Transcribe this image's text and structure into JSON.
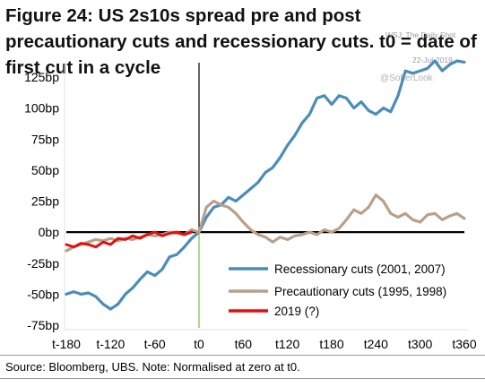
{
  "header": {
    "title": "Figure 24: US 2s10s spread pre and post precautionary cuts and recessionary cuts. t0 = date of first cut in a cycle"
  },
  "watermark": {
    "source": "WSJ: The Daily Shot",
    "date": "22-Jul-2019",
    "handle": "@SoberLook"
  },
  "footer": {
    "source": "Source:  Bloomberg, UBS. Note: Normalised at zero at t0."
  },
  "colors": {
    "recessionary": "#4a8db8",
    "precautionary": "#b8a08a",
    "y2019": "#e01010",
    "zero_line": "#000000",
    "t0_line_upper": "#000000",
    "t0_line_lower": "#7fbf3a"
  },
  "chart_data": {
    "type": "line",
    "title": "US 2s10s spread pre and post precautionary cuts and recessionary cuts. t0 = date of first cut in a cycle",
    "xlabel": "",
    "ylabel": "",
    "x_ticks": [
      -180,
      -120,
      -60,
      0,
      60,
      120,
      180,
      240,
      300,
      360
    ],
    "x_tick_labels": [
      "t-180",
      "t-120",
      "t-60",
      "t0",
      "t60",
      "t120",
      "t180",
      "t240",
      "t300",
      "t360"
    ],
    "xlim": [
      -180,
      360
    ],
    "y_ticks": [
      -75,
      -50,
      -25,
      0,
      25,
      50,
      75,
      100,
      125
    ],
    "y_tick_labels": [
      "-75bp",
      "-50bp",
      "-25bp",
      "0bp",
      "25bp",
      "50bp",
      "75bp",
      "100bp",
      "125bp"
    ],
    "ylim": [
      -75,
      145
    ],
    "grid": false,
    "legend_position": "bottom-right",
    "series": [
      {
        "name": "Recessionary cuts (2001, 2007)",
        "color": "#4a8db8",
        "x": [
          -180,
          -170,
          -160,
          -150,
          -140,
          -130,
          -120,
          -110,
          -100,
          -90,
          -80,
          -70,
          -60,
          -50,
          -40,
          -30,
          -20,
          -10,
          0,
          10,
          20,
          30,
          40,
          50,
          60,
          70,
          80,
          90,
          100,
          110,
          120,
          130,
          140,
          150,
          160,
          170,
          180,
          190,
          200,
          210,
          220,
          230,
          240,
          250,
          260,
          270,
          280,
          290,
          300,
          310,
          320,
          330,
          340,
          350,
          360
        ],
        "y": [
          -50,
          -48,
          -50,
          -49,
          -52,
          -58,
          -62,
          -58,
          -50,
          -45,
          -38,
          -32,
          -35,
          -30,
          -20,
          -18,
          -12,
          -5,
          0,
          12,
          20,
          22,
          28,
          25,
          30,
          35,
          40,
          48,
          52,
          60,
          70,
          78,
          88,
          95,
          108,
          110,
          103,
          110,
          108,
          100,
          105,
          98,
          95,
          100,
          97,
          110,
          130,
          128,
          130,
          132,
          138,
          130,
          135,
          138,
          137
        ]
      },
      {
        "name": "Precautionary cuts (1995, 1998)",
        "color": "#b8a08a",
        "x": [
          -180,
          -170,
          -160,
          -150,
          -140,
          -130,
          -120,
          -110,
          -100,
          -90,
          -80,
          -70,
          -60,
          -50,
          -40,
          -30,
          -20,
          -10,
          0,
          10,
          20,
          30,
          40,
          50,
          60,
          70,
          80,
          90,
          100,
          110,
          120,
          130,
          140,
          150,
          160,
          170,
          180,
          190,
          200,
          210,
          220,
          230,
          240,
          250,
          260,
          270,
          280,
          290,
          300,
          310,
          320,
          330,
          340,
          350,
          360
        ],
        "y": [
          -15,
          -12,
          -10,
          -8,
          -6,
          -7,
          -5,
          -7,
          -5,
          -6,
          -4,
          -2,
          -3,
          -2,
          0,
          -1,
          -2,
          2,
          0,
          20,
          25,
          22,
          20,
          15,
          8,
          2,
          -2,
          -4,
          -8,
          -4,
          -6,
          -3,
          -2,
          0,
          -2,
          2,
          0,
          3,
          10,
          18,
          15,
          20,
          30,
          25,
          15,
          12,
          15,
          10,
          8,
          14,
          15,
          10,
          13,
          15,
          11
        ]
      },
      {
        "name": "2019 (?)",
        "color": "#e01010",
        "x": [
          -180,
          -170,
          -160,
          -150,
          -140,
          -130,
          -120,
          -110,
          -100,
          -90,
          -80,
          -70,
          -60,
          -50,
          -40,
          -30,
          -20,
          -10
        ],
        "y": [
          -10,
          -12,
          -9,
          -10,
          -12,
          -8,
          -10,
          -5,
          -6,
          -3,
          -5,
          -2,
          0,
          -3,
          -1,
          0,
          -2,
          0
        ]
      }
    ]
  }
}
